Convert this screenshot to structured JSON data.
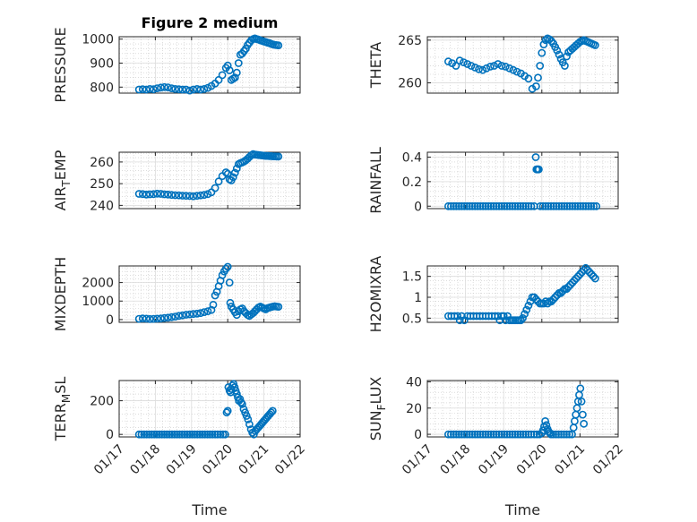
{
  "figure": {
    "title": "Figure 2 medium",
    "marker_color": "#0072bd"
  },
  "chart_data": [
    {
      "type": "scatter",
      "ylabel": "PRESSURE",
      "ylim": [
        775,
        1010
      ],
      "yticks": [
        800,
        900,
        1000
      ],
      "ytick_labels": [
        "800",
        "900",
        "1000"
      ],
      "x": [
        17.55,
        17.65,
        17.75,
        17.85,
        17.95,
        18.05,
        18.15,
        18.25,
        18.35,
        18.45,
        18.55,
        18.65,
        18.75,
        18.85,
        18.95,
        19.05,
        19.15,
        19.25,
        19.35,
        19.45,
        19.55,
        19.65,
        19.75,
        19.85,
        19.95,
        20.0,
        20.05,
        20.1,
        20.15,
        20.2,
        20.25,
        20.3,
        20.35,
        20.4,
        20.45,
        20.5,
        20.55,
        20.6,
        20.65,
        20.7,
        20.75,
        20.8,
        20.85,
        20.9,
        20.95,
        21.0,
        21.05,
        21.1,
        21.15,
        21.2,
        21.25,
        21.3,
        21.35,
        21.4
      ],
      "y": [
        790,
        791,
        790,
        792,
        791,
        795,
        798,
        800,
        799,
        795,
        792,
        791,
        790,
        790,
        786,
        790,
        792,
        790,
        792,
        797,
        805,
        815,
        830,
        850,
        880,
        890,
        870,
        830,
        835,
        840,
        860,
        900,
        935,
        940,
        950,
        960,
        975,
        985,
        995,
        1000,
        1003,
        1000,
        998,
        995,
        993,
        990,
        988,
        985,
        983,
        980,
        978,
        976,
        975,
        974
      ]
    },
    {
      "type": "scatter",
      "ylabel": "THETA",
      "ylim": [
        258.8,
        265.4
      ],
      "yticks": [
        260,
        265
      ],
      "ytick_labels": [
        "260",
        "265"
      ],
      "x": [
        17.55,
        17.65,
        17.75,
        17.85,
        17.95,
        18.05,
        18.15,
        18.25,
        18.35,
        18.45,
        18.55,
        18.65,
        18.75,
        18.85,
        18.95,
        19.05,
        19.15,
        19.25,
        19.35,
        19.45,
        19.55,
        19.65,
        19.75,
        19.85,
        19.9,
        19.95,
        20.0,
        20.05,
        20.1,
        20.15,
        20.2,
        20.25,
        20.3,
        20.35,
        20.4,
        20.45,
        20.5,
        20.55,
        20.6,
        20.65,
        20.7,
        20.75,
        20.8,
        20.85,
        20.9,
        20.95,
        21.0,
        21.05,
        21.1,
        21.15,
        21.2,
        21.25,
        21.3,
        21.35,
        21.4
      ],
      "y": [
        262.5,
        262.3,
        262.0,
        262.6,
        262.4,
        262.2,
        262.0,
        261.8,
        261.6,
        261.5,
        261.7,
        261.9,
        262.0,
        262.2,
        262.0,
        261.9,
        261.7,
        261.5,
        261.3,
        261.1,
        260.8,
        260.5,
        259.3,
        259.6,
        260.6,
        262.0,
        263.5,
        264.5,
        265.0,
        265.2,
        265.1,
        264.9,
        264.6,
        264.2,
        263.8,
        263.3,
        262.8,
        262.4,
        262.0,
        263.1,
        263.6,
        263.8,
        264.0,
        264.2,
        264.4,
        264.6,
        264.8,
        264.9,
        265.0,
        264.9,
        264.8,
        264.7,
        264.6,
        264.5,
        264.4
      ]
    },
    {
      "type": "scatter",
      "ylabel": "AIR_TEMP",
      "ylabel_base": "AIR",
      "ylabel_sub": "T",
      "ylabel_rest": "EMP",
      "ylim": [
        238.5,
        264.5
      ],
      "yticks": [
        240,
        250,
        260
      ],
      "ytick_labels": [
        "240",
        "250",
        "260"
      ],
      "x": [
        17.55,
        17.65,
        17.75,
        17.85,
        17.95,
        18.05,
        18.15,
        18.25,
        18.35,
        18.45,
        18.55,
        18.65,
        18.75,
        18.85,
        18.95,
        19.05,
        19.15,
        19.25,
        19.35,
        19.45,
        19.55,
        19.65,
        19.75,
        19.85,
        19.95,
        20.0,
        20.05,
        20.1,
        20.15,
        20.2,
        20.25,
        20.3,
        20.35,
        20.4,
        20.45,
        20.5,
        20.55,
        20.6,
        20.65,
        20.7,
        20.75,
        20.8,
        20.85,
        20.9,
        20.95,
        21.0,
        21.05,
        21.1,
        21.15,
        21.2,
        21.25,
        21.3,
        21.35,
        21.4
      ],
      "y": [
        245.3,
        245.2,
        245.0,
        245.1,
        245.2,
        245.4,
        245.3,
        245.1,
        245.0,
        244.8,
        244.7,
        244.6,
        244.5,
        244.4,
        244.3,
        244.2,
        244.4,
        244.6,
        244.8,
        245.2,
        246,
        248,
        251,
        253.5,
        255.2,
        254.5,
        252,
        251.5,
        253,
        255,
        257,
        259,
        259.5,
        259.8,
        260.2,
        260.8,
        261.5,
        262.3,
        263.1,
        263.6,
        263.4,
        263.3,
        263.2,
        263.1,
        263.0,
        262.9,
        262.8,
        262.8,
        262.7,
        262.7,
        262.6,
        262.6,
        262.5,
        262.5
      ]
    },
    {
      "type": "scatter",
      "ylabel": "RAINFALL",
      "ylim": [
        -0.02,
        0.44
      ],
      "yticks": [
        0,
        0.2,
        0.4
      ],
      "ytick_labels": [
        "0",
        "0.2",
        "0.4"
      ],
      "x": [
        17.55,
        17.62,
        17.69,
        17.76,
        17.83,
        17.9,
        17.97,
        18.04,
        18.11,
        18.18,
        18.25,
        18.32,
        18.39,
        18.46,
        18.53,
        18.6,
        18.67,
        18.74,
        18.81,
        18.88,
        18.95,
        19.02,
        19.09,
        19.16,
        19.23,
        19.3,
        19.37,
        19.44,
        19.51,
        19.58,
        19.65,
        19.72,
        19.8,
        19.84,
        19.86,
        19.88,
        19.9,
        19.92,
        19.96,
        20.03,
        20.1,
        20.17,
        20.24,
        20.31,
        20.38,
        20.45,
        20.52,
        20.59,
        20.66,
        20.73,
        20.8,
        20.87,
        20.94,
        21.01,
        21.08,
        21.15,
        21.22,
        21.29,
        21.36,
        21.43
      ],
      "y": [
        0,
        0,
        0,
        0,
        0,
        0,
        0,
        0,
        0,
        0,
        0,
        0,
        0,
        0,
        0,
        0,
        0,
        0,
        0,
        0,
        0,
        0,
        0,
        0,
        0,
        0,
        0,
        0,
        0,
        0,
        0,
        0,
        0,
        0.4,
        0.3,
        0.3,
        0.3,
        0.3,
        0,
        0,
        0,
        0,
        0,
        0,
        0,
        0,
        0,
        0,
        0,
        0,
        0,
        0,
        0,
        0,
        0,
        0,
        0,
        0,
        0,
        0
      ]
    },
    {
      "type": "scatter",
      "ylabel": "MIXDEPTH",
      "ylim": [
        -150,
        2900
      ],
      "yticks": [
        0,
        1000,
        2000
      ],
      "ytick_labels": [
        "0",
        "1000",
        "2000"
      ],
      "x": [
        17.55,
        17.65,
        17.75,
        17.85,
        17.95,
        18.05,
        18.15,
        18.25,
        18.35,
        18.45,
        18.55,
        18.65,
        18.75,
        18.85,
        18.95,
        19.05,
        19.15,
        19.25,
        19.35,
        19.45,
        19.55,
        19.6,
        19.65,
        19.7,
        19.75,
        19.8,
        19.85,
        19.9,
        19.95,
        20.0,
        20.05,
        20.07,
        20.1,
        20.15,
        20.2,
        20.25,
        20.3,
        20.35,
        20.4,
        20.45,
        20.5,
        20.55,
        20.6,
        20.65,
        20.7,
        20.75,
        20.8,
        20.85,
        20.9,
        20.95,
        21.0,
        21.05,
        21.1,
        21.15,
        21.2,
        21.25,
        21.3,
        21.35,
        21.4
      ],
      "y": [
        40,
        60,
        50,
        30,
        40,
        50,
        60,
        80,
        100,
        130,
        160,
        200,
        230,
        260,
        280,
        300,
        320,
        350,
        400,
        450,
        520,
        800,
        1300,
        1500,
        1800,
        2100,
        2400,
        2600,
        2750,
        2850,
        2000,
        900,
        700,
        550,
        400,
        250,
        450,
        550,
        600,
        450,
        350,
        250,
        200,
        280,
        350,
        450,
        550,
        650,
        700,
        650,
        600,
        550,
        620,
        650,
        680,
        700,
        720,
        700,
        690
      ]
    },
    {
      "type": "scatter",
      "ylabel": "H2OMIXRA",
      "ylim": [
        0.4,
        1.75
      ],
      "yticks": [
        0.5,
        1,
        1.5
      ],
      "ytick_labels": [
        "0.5",
        "1",
        "1.5"
      ],
      "x": [
        17.55,
        17.63,
        17.71,
        17.79,
        17.85,
        17.9,
        17.97,
        18.05,
        18.13,
        18.21,
        18.29,
        18.37,
        18.45,
        18.53,
        18.61,
        18.69,
        18.77,
        18.85,
        18.9,
        18.95,
        19.0,
        19.05,
        19.1,
        19.15,
        19.2,
        19.25,
        19.3,
        19.35,
        19.4,
        19.45,
        19.5,
        19.55,
        19.6,
        19.65,
        19.7,
        19.75,
        19.8,
        19.85,
        19.9,
        19.95,
        20.0,
        20.05,
        20.1,
        20.15,
        20.2,
        20.25,
        20.3,
        20.35,
        20.4,
        20.45,
        20.5,
        20.55,
        20.6,
        20.65,
        20.7,
        20.75,
        20.8,
        20.85,
        20.9,
        20.95,
        21.0,
        21.05,
        21.1,
        21.15,
        21.2,
        21.25,
        21.3,
        21.35,
        21.4
      ],
      "y": [
        0.55,
        0.55,
        0.55,
        0.55,
        0.45,
        0.55,
        0.45,
        0.55,
        0.55,
        0.55,
        0.55,
        0.55,
        0.55,
        0.55,
        0.55,
        0.55,
        0.55,
        0.55,
        0.45,
        0.55,
        0.55,
        0.45,
        0.55,
        0.45,
        0.45,
        0.45,
        0.45,
        0.45,
        0.45,
        0.45,
        0.5,
        0.6,
        0.7,
        0.8,
        0.9,
        1.0,
        1.0,
        0.95,
        0.9,
        0.85,
        0.85,
        0.85,
        0.9,
        0.85,
        0.9,
        0.9,
        0.95,
        1.0,
        1.05,
        1.1,
        1.1,
        1.15,
        1.2,
        1.2,
        1.25,
        1.3,
        1.35,
        1.4,
        1.45,
        1.5,
        1.55,
        1.6,
        1.65,
        1.7,
        1.65,
        1.6,
        1.55,
        1.5,
        1.45
      ]
    },
    {
      "type": "scatter",
      "ylabel": "TERR_MSL",
      "ylabel_base": "TERR",
      "ylabel_sub": "M",
      "ylabel_rest": "SL",
      "ylim": [
        -15,
        320
      ],
      "yticks": [
        0,
        200
      ],
      "ytick_labels": [
        "0",
        "200"
      ],
      "x": [
        17.55,
        17.62,
        17.69,
        17.76,
        17.83,
        17.9,
        17.97,
        18.04,
        18.11,
        18.18,
        18.25,
        18.32,
        18.39,
        18.46,
        18.53,
        18.6,
        18.67,
        18.74,
        18.81,
        18.88,
        18.95,
        19.02,
        19.09,
        19.16,
        19.23,
        19.3,
        19.37,
        19.44,
        19.51,
        19.58,
        19.65,
        19.72,
        19.8,
        19.87,
        19.93,
        19.97,
        20.0,
        20.02,
        20.05,
        20.08,
        20.1,
        20.13,
        20.16,
        20.19,
        20.22,
        20.25,
        20.28,
        20.31,
        20.34,
        20.37,
        20.4,
        20.44,
        20.48,
        20.52,
        20.56,
        20.6,
        20.64,
        20.68,
        20.72,
        20.76,
        20.8,
        20.84,
        20.88,
        20.92,
        20.96,
        21.0,
        21.04,
        21.08,
        21.12,
        21.16,
        21.2,
        21.24
      ],
      "y": [
        0,
        0,
        0,
        0,
        0,
        0,
        0,
        0,
        0,
        0,
        0,
        0,
        0,
        0,
        0,
        0,
        0,
        0,
        0,
        0,
        0,
        0,
        0,
        0,
        0,
        0,
        0,
        0,
        0,
        0,
        0,
        0,
        0,
        0,
        0,
        130,
        140,
        280,
        260,
        250,
        270,
        290,
        300,
        280,
        260,
        240,
        220,
        200,
        210,
        190,
        180,
        150,
        130,
        110,
        90,
        60,
        30,
        10,
        0,
        20,
        30,
        40,
        50,
        60,
        70,
        80,
        90,
        100,
        110,
        120,
        130,
        140
      ]
    },
    {
      "type": "scatter",
      "ylabel": "SUN_FLUX",
      "ylabel_base": "SUN",
      "ylabel_sub": "F",
      "ylabel_rest": "LUX",
      "ylim": [
        -2,
        41
      ],
      "yticks": [
        0,
        20,
        40
      ],
      "ytick_labels": [
        "0",
        "20",
        "40"
      ],
      "x": [
        17.55,
        17.62,
        17.69,
        17.76,
        17.83,
        17.9,
        17.97,
        18.04,
        18.11,
        18.18,
        18.25,
        18.32,
        18.39,
        18.46,
        18.53,
        18.6,
        18.67,
        18.74,
        18.81,
        18.88,
        18.95,
        19.02,
        19.09,
        19.16,
        19.23,
        19.3,
        19.37,
        19.44,
        19.51,
        19.58,
        19.65,
        19.72,
        19.8,
        19.87,
        19.94,
        20.0,
        20.03,
        20.06,
        20.09,
        20.12,
        20.15,
        20.18,
        20.21,
        20.24,
        20.3,
        20.37,
        20.44,
        20.51,
        20.58,
        20.65,
        20.72,
        20.79,
        20.83,
        20.86,
        20.89,
        20.92,
        20.95,
        20.98,
        21.01,
        21.04,
        21.07,
        21.1
      ],
      "y": [
        0,
        0,
        0,
        0,
        0,
        0,
        0,
        0,
        0,
        0,
        0,
        0,
        0,
        0,
        0,
        0,
        0,
        0,
        0,
        0,
        0,
        0,
        0,
        0,
        0,
        0,
        0,
        0,
        0,
        0,
        0,
        0,
        0,
        0,
        0,
        1,
        3,
        6,
        10,
        7,
        4,
        2,
        1,
        0,
        0,
        0,
        0,
        0,
        0,
        0,
        0,
        0,
        5,
        10,
        15,
        20,
        25,
        30,
        35,
        25,
        15,
        8
      ]
    }
  ],
  "xaxis": {
    "xlabel": "Time",
    "xlim": [
      17,
      22
    ],
    "xticks": [
      17,
      18,
      19,
      20,
      21,
      22
    ],
    "xtick_labels": [
      "01/17",
      "01/18",
      "01/19",
      "01/20",
      "01/21",
      "01/22"
    ]
  }
}
